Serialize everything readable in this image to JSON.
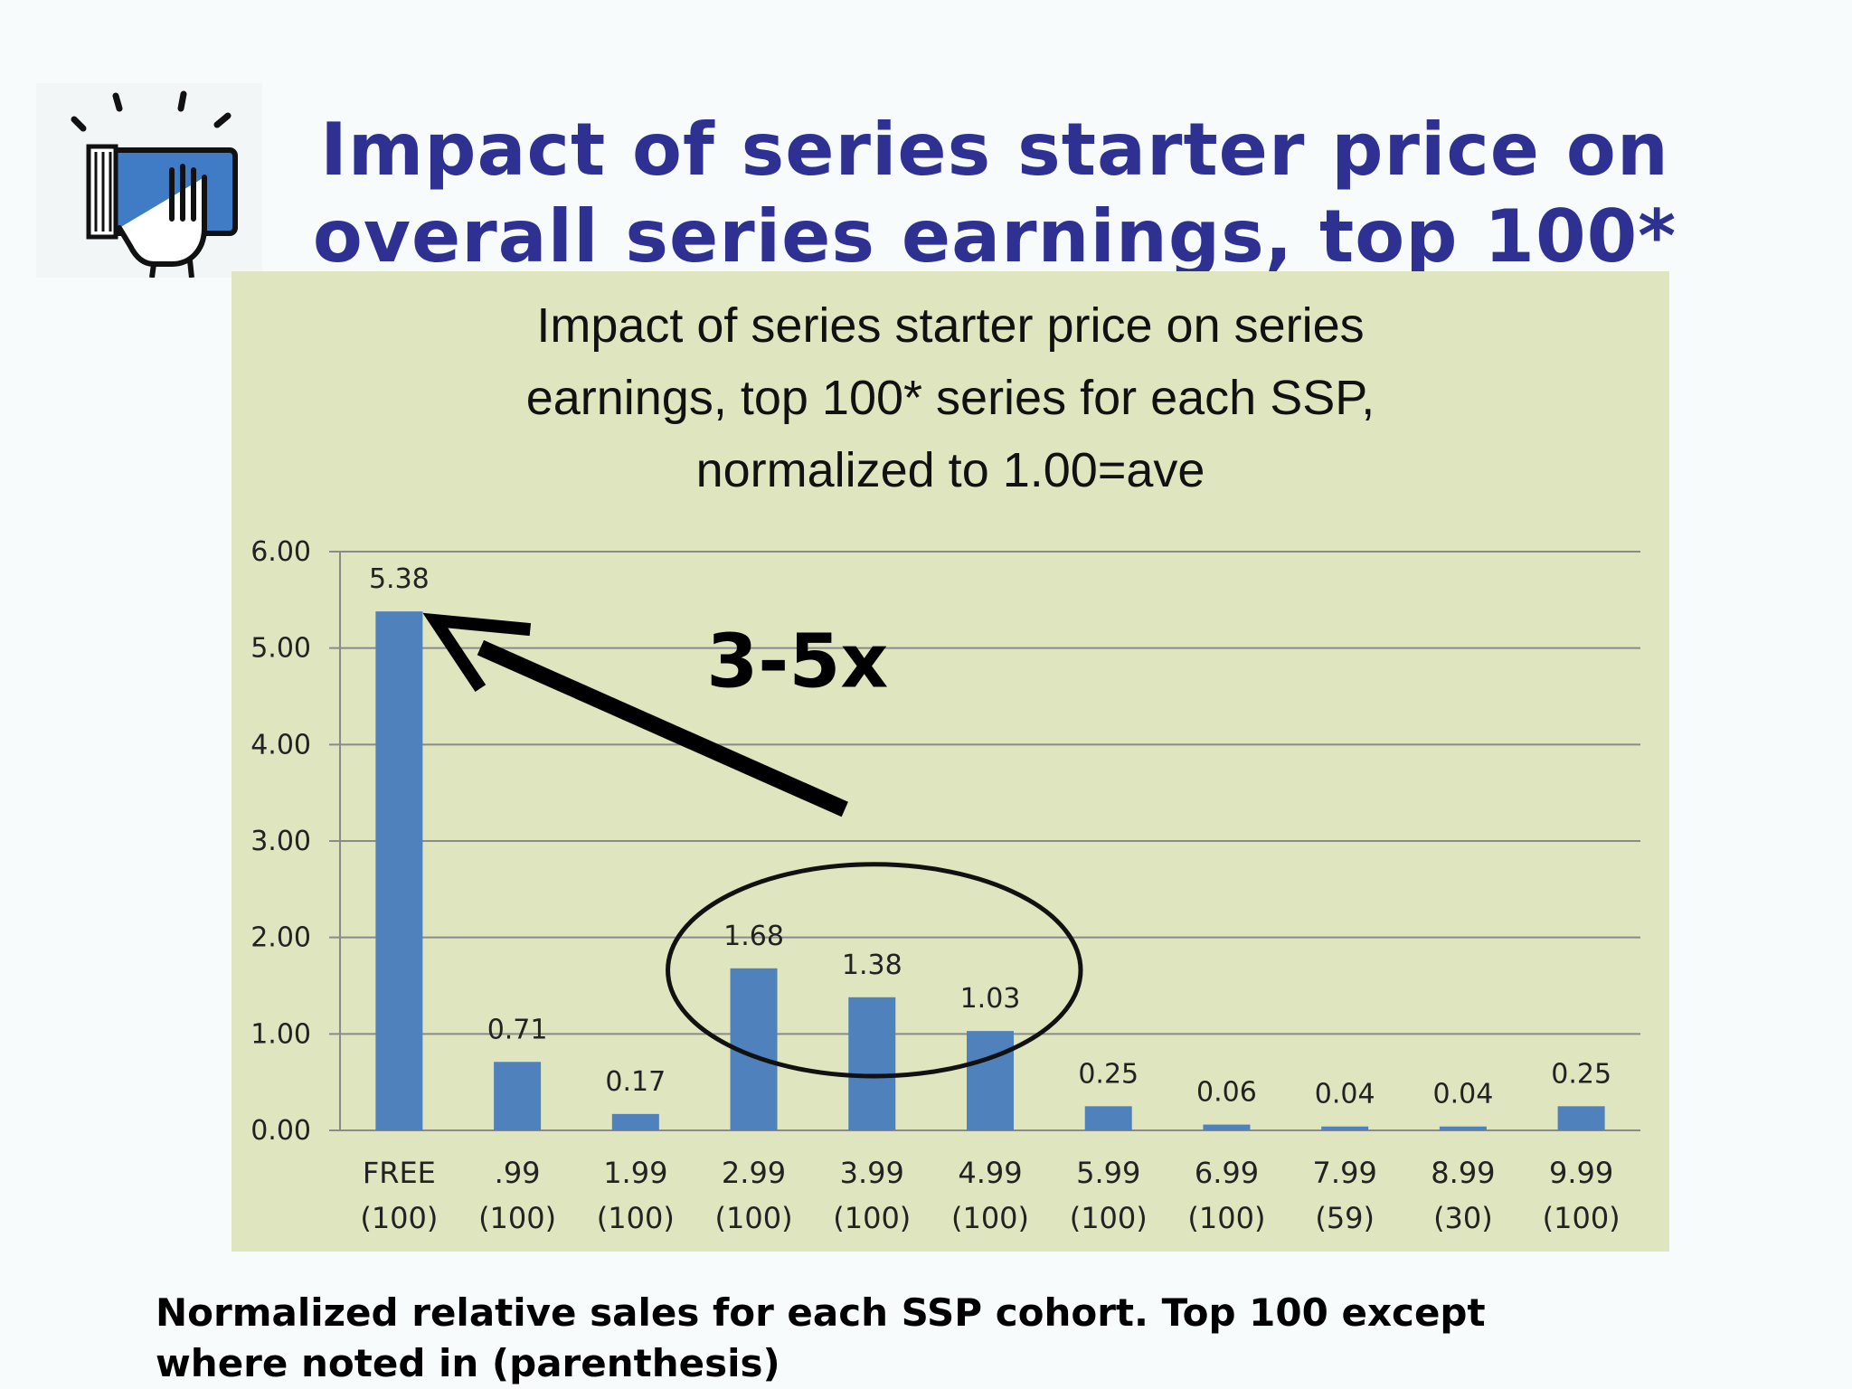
{
  "slide": {
    "title_line1": "Impact of series starter price on",
    "title_line2": "overall series earnings, top 100*",
    "caption_line1": "Normalized relative sales for each SSP cohort.  Top 100 except",
    "caption_line2": "where noted in (parenthesis)",
    "logo_icon": "hand-on-book-icon"
  },
  "colors": {
    "title": "#2e3192",
    "panel": "#dfe5bf",
    "bar": "#4f81bd",
    "gridline": "#8a8a8a"
  },
  "chart_data": {
    "type": "bar",
    "title_lines": [
      "Impact of series starter price on series",
      "earnings, top 100* series for each SSP,",
      "normalized to 1.00=ave"
    ],
    "categories": [
      "FREE",
      ".99",
      "1.99",
      "2.99",
      "3.99",
      "4.99",
      "5.99",
      "6.99",
      "7.99",
      "8.99",
      "9.99"
    ],
    "category_counts": [
      "(100)",
      "(100)",
      "(100)",
      "(100)",
      "(100)",
      "(100)",
      "(100)",
      "(100)",
      "(59)",
      "(30)",
      "(100)"
    ],
    "values": [
      5.38,
      0.71,
      0.17,
      1.68,
      1.38,
      1.03,
      0.25,
      0.06,
      0.04,
      0.04,
      0.25
    ],
    "data_labels": [
      "5.38",
      "0.71",
      "0.17",
      "1.68",
      "1.38",
      "1.03",
      "0.25",
      "0.06",
      "0.04",
      "0.04",
      "0.25"
    ],
    "ylim": [
      0,
      6
    ],
    "yticks": [
      "0.00",
      "1.00",
      "2.00",
      "3.00",
      "4.00",
      "5.00",
      "6.00"
    ],
    "grid": true,
    "xlabel": "",
    "ylabel": "",
    "annotation": {
      "text": "3-5x",
      "arrow_from": "3.99",
      "arrow_to": "FREE",
      "circled_categories": [
        "2.99",
        "3.99",
        "4.99"
      ]
    }
  }
}
